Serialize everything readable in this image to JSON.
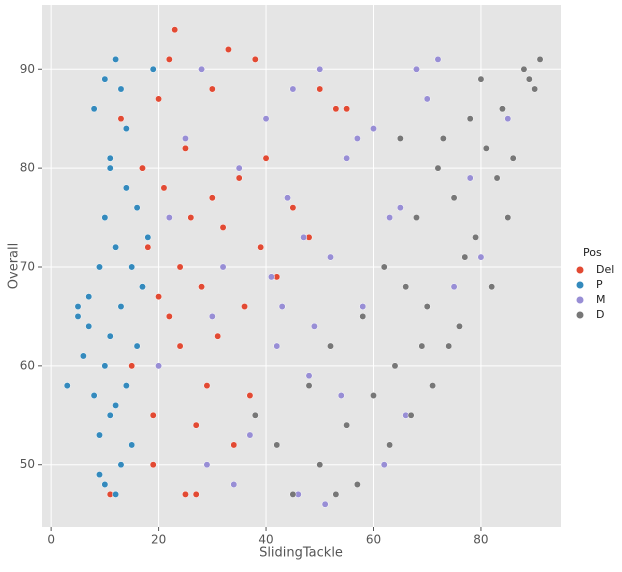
{
  "chart_data": {
    "type": "scatter",
    "x_label": "SlidingTackle",
    "y_label": "Overall",
    "legend_title": "Pos",
    "legend": "right",
    "grid": true,
    "xlim": [
      -1.7,
      94.9
    ],
    "ylim": [
      43.7,
      96.5
    ],
    "xticks": [
      0,
      20,
      40,
      60,
      80
    ],
    "yticks": [
      50,
      60,
      70,
      80,
      90
    ],
    "series": [
      {
        "name": "Del",
        "color": "#E24A33",
        "x": [
          11,
          13,
          15,
          17,
          18,
          19,
          20,
          21,
          22,
          22,
          23,
          24,
          25,
          25,
          26,
          27,
          28,
          29,
          30,
          31,
          32,
          33,
          34,
          35,
          36,
          37,
          38,
          39,
          40,
          42,
          45,
          48,
          50,
          53,
          55,
          19,
          24,
          27,
          30,
          20
        ],
        "y": [
          47,
          85,
          60,
          80,
          72,
          55,
          87,
          78,
          91,
          65,
          94,
          70,
          47,
          82,
          75,
          47,
          68,
          58,
          88,
          63,
          74,
          92,
          52,
          79,
          66,
          57,
          91,
          72,
          81,
          69,
          76,
          73,
          88,
          86,
          86,
          50,
          62,
          54,
          77,
          67
        ]
      },
      {
        "name": "P",
        "color": "#348ABD",
        "x": [
          3,
          5,
          5,
          6,
          7,
          8,
          8,
          9,
          9,
          10,
          10,
          10,
          11,
          11,
          11,
          12,
          12,
          12,
          13,
          13,
          13,
          14,
          14,
          14,
          15,
          15,
          16,
          16,
          17,
          18,
          19,
          10,
          12,
          7,
          9,
          11
        ],
        "y": [
          58,
          65,
          66,
          61,
          67,
          57,
          86,
          53,
          70,
          89,
          75,
          48,
          63,
          81,
          55,
          91,
          72,
          47,
          88,
          66,
          50,
          78,
          58,
          84,
          70,
          52,
          76,
          62,
          68,
          73,
          90,
          60,
          56,
          64,
          49,
          80
        ]
      },
      {
        "name": "M",
        "color": "#988ED5",
        "x": [
          20,
          22,
          25,
          28,
          30,
          32,
          34,
          35,
          38,
          40,
          42,
          44,
          45,
          46,
          48,
          50,
          51,
          52,
          55,
          58,
          60,
          62,
          65,
          68,
          70,
          72,
          75,
          78,
          80,
          85,
          37,
          43,
          47,
          54,
          57,
          63,
          66,
          49,
          41,
          29
        ],
        "y": [
          60,
          75,
          83,
          90,
          65,
          70,
          48,
          80,
          55,
          85,
          62,
          77,
          88,
          47,
          59,
          90,
          46,
          71,
          81,
          66,
          84,
          50,
          76,
          90,
          87,
          91,
          68,
          79,
          71,
          85,
          53,
          66,
          73,
          57,
          83,
          75,
          55,
          64,
          69,
          50
        ]
      },
      {
        "name": "D",
        "color": "#777777",
        "x": [
          38,
          42,
          45,
          48,
          50,
          52,
          55,
          58,
          60,
          62,
          64,
          65,
          67,
          68,
          70,
          72,
          74,
          75,
          77,
          78,
          80,
          81,
          82,
          84,
          85,
          86,
          88,
          89,
          90,
          91,
          57,
          63,
          71,
          76,
          79,
          83,
          66,
          53,
          73,
          69
        ],
        "y": [
          55,
          52,
          47,
          58,
          50,
          62,
          54,
          65,
          57,
          70,
          60,
          83,
          55,
          75,
          66,
          80,
          62,
          77,
          71,
          85,
          89,
          82,
          68,
          86,
          75,
          81,
          90,
          89,
          88,
          91,
          48,
          52,
          58,
          64,
          73,
          79,
          68,
          47,
          83,
          62
        ]
      }
    ]
  }
}
